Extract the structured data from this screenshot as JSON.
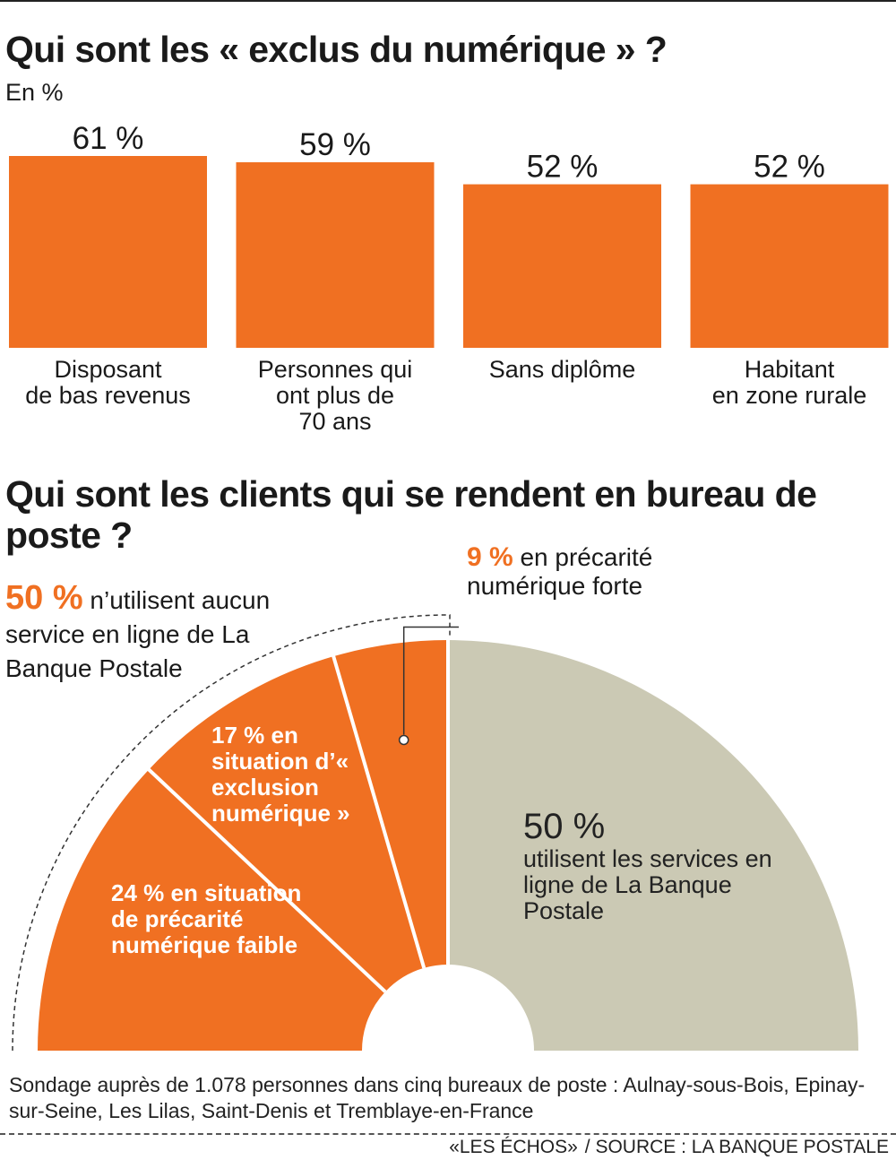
{
  "chart_data": [
    {
      "type": "bar",
      "title": "Qui sont les « exclus du numérique » ?",
      "subtitle": "En %",
      "categories": [
        [
          "Disposant",
          "de bas revenus"
        ],
        [
          "Personnes qui",
          "ont plus de",
          "70 ans"
        ],
        [
          "Sans diplôme"
        ],
        [
          "Habitant",
          "en zone rurale"
        ]
      ],
      "values": [
        61,
        59,
        52,
        52
      ],
      "value_labels": [
        "61 %",
        "59 %",
        "52 %",
        "52 %"
      ],
      "color": "#f07022",
      "ylim": [
        0,
        61
      ],
      "grid": false
    },
    {
      "type": "pie",
      "variant": "semicircle",
      "title": "Qui sont les clients qui se rendent en bureau de poste ?",
      "segments": [
        {
          "value": 24,
          "color": "#f07022"
        },
        {
          "value": 17,
          "color": "#f07022"
        },
        {
          "value": 9,
          "color": "#f07022"
        },
        {
          "value": 50,
          "color": "#cbc9b4"
        }
      ],
      "annotations": {
        "group_50": {
          "value": "50 %",
          "text": "n’utilisent aucun service en ligne de La Banque Postale"
        },
        "seg_9": {
          "value": "9 %",
          "text": "en précarité numérique forte"
        },
        "seg_17": {
          "value": "17 %",
          "text": "en situation d’« exclusion numérique »"
        },
        "seg_24": {
          "value": "24 %",
          "text": "en situation de précarité numérique faible"
        },
        "seg_50": {
          "value": "50 %",
          "text": "utilisent les services en ligne de La Banque Postale"
        }
      }
    }
  ],
  "footer": {
    "note": "Sondage auprès de 1.078 personnes dans cinq bureaux de poste : Aulnay-sous-Bois, Epinay-sur-Seine, Les Lilas, Saint-Denis et Tremblaye-en-France",
    "credit_outlet": "«LES ÉCHOS»",
    "credit_source": "/ SOURCE : LA BANQUE POSTALE"
  }
}
